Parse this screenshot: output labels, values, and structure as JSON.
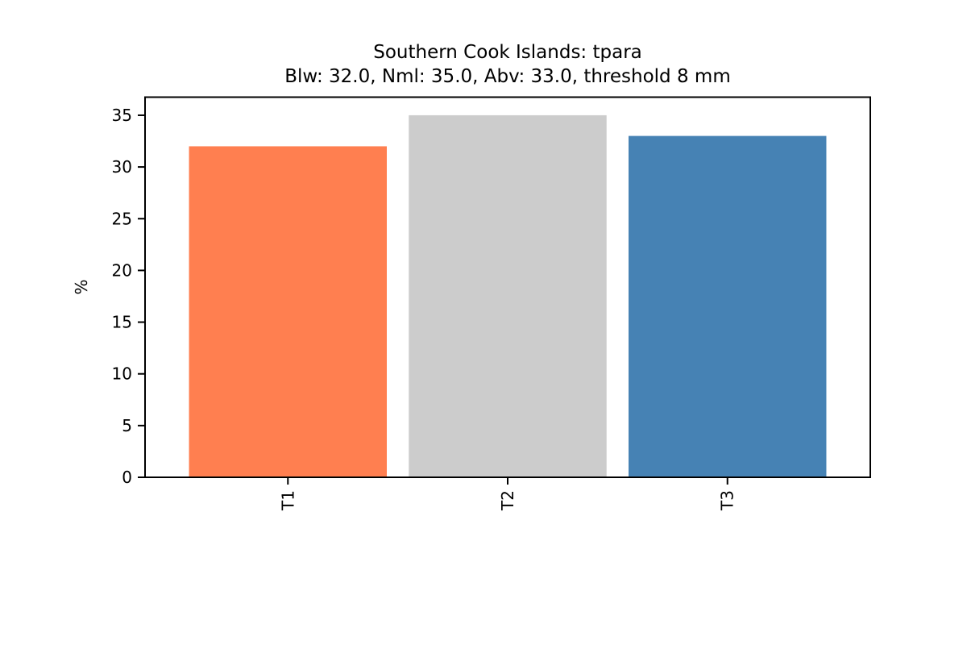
{
  "chart_data": {
    "type": "bar",
    "title": "Southern Cook Islands: tpara",
    "subtitle": "Blw: 32.0, Nml: 35.0, Abv: 33.0, threshold 8 mm",
    "xlabel": "",
    "ylabel": "%",
    "categories": [
      "T1",
      "T2",
      "T3"
    ],
    "values": [
      32.0,
      35.0,
      33.0
    ],
    "colors": [
      "#ff7f50",
      "#cccccc",
      "#4682b4"
    ],
    "ylim": [
      0,
      36.75
    ],
    "yticks": [
      0,
      5,
      10,
      15,
      20,
      25,
      30,
      35
    ],
    "grid": false,
    "legend": "none"
  }
}
